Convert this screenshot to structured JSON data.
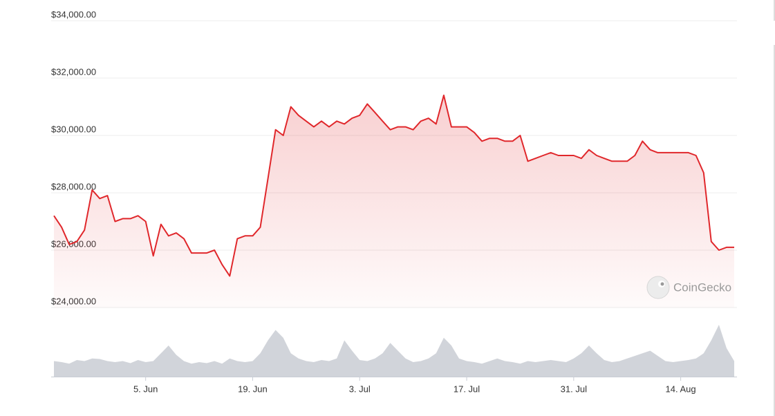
{
  "chart_data": {
    "type": "line",
    "color": "#e0272b",
    "grid": true,
    "ylim": [
      24000,
      34000
    ],
    "yticks": [
      {
        "value": 24000,
        "label": "$24,000.00"
      },
      {
        "value": 26000,
        "label": "$26,000.00"
      },
      {
        "value": 28000,
        "label": "$28,000.00"
      },
      {
        "value": 30000,
        "label": "$30,000.00"
      },
      {
        "value": 32000,
        "label": "$32,000.00"
      },
      {
        "value": 34000,
        "label": "$34,000.00"
      }
    ],
    "x": [
      "24. May",
      "25. May",
      "26. May",
      "27. May",
      "28. May",
      "29. May",
      "30. May",
      "31. May",
      "1. Jun",
      "2. Jun",
      "3. Jun",
      "4. Jun",
      "5. Jun",
      "6. Jun",
      "7. Jun",
      "8. Jun",
      "9. Jun",
      "10. Jun",
      "11. Jun",
      "12. Jun",
      "13. Jun",
      "14. Jun",
      "15. Jun",
      "16. Jun",
      "17. Jun",
      "18. Jun",
      "19. Jun",
      "20. Jun",
      "21. Jun",
      "22. Jun",
      "23. Jun",
      "24. Jun",
      "25. Jun",
      "26. Jun",
      "27. Jun",
      "28. Jun",
      "29. Jun",
      "30. Jun",
      "1. Jul",
      "2. Jul",
      "3. Jul",
      "4. Jul",
      "5. Jul",
      "6. Jul",
      "7. Jul",
      "8. Jul",
      "9. Jul",
      "10. Jul",
      "11. Jul",
      "12. Jul",
      "13. Jul",
      "14. Jul",
      "15. Jul",
      "16. Jul",
      "17. Jul",
      "18. Jul",
      "19. Jul",
      "20. Jul",
      "21. Jul",
      "22. Jul",
      "23. Jul",
      "24. Jul",
      "25. Jul",
      "26. Jul",
      "27. Jul",
      "28. Jul",
      "29. Jul",
      "30. Jul",
      "31. Jul",
      "1. Aug",
      "2. Aug",
      "3. Aug",
      "4. Aug",
      "5. Aug",
      "6. Aug",
      "7. Aug",
      "8. Aug",
      "9. Aug",
      "10. Aug",
      "11. Aug",
      "12. Aug",
      "13. Aug",
      "14. Aug",
      "15. Aug",
      "16. Aug",
      "17. Aug",
      "18. Aug",
      "19. Aug",
      "20. Aug",
      "21. Aug"
    ],
    "values": [
      27200,
      26800,
      26200,
      26300,
      26700,
      28100,
      27800,
      27900,
      27000,
      27100,
      27100,
      27200,
      27000,
      25800,
      26900,
      26500,
      26600,
      26400,
      25900,
      25900,
      25900,
      26000,
      25500,
      25100,
      26400,
      26500,
      26500,
      26800,
      28500,
      30200,
      30000,
      31000,
      30700,
      30500,
      30300,
      30500,
      30300,
      30500,
      30400,
      30600,
      30700,
      31100,
      30800,
      30500,
      30200,
      30300,
      30300,
      30200,
      30500,
      30600,
      30400,
      31400,
      30300,
      30300,
      30300,
      30100,
      29800,
      29900,
      29900,
      29800,
      29800,
      30000,
      29100,
      29200,
      29300,
      29400,
      29300,
      29300,
      29300,
      29200,
      29500,
      29300,
      29200,
      29100,
      29100,
      29100,
      29300,
      29800,
      29500,
      29400,
      29400,
      29400,
      29400,
      29400,
      29300,
      28700,
      26300,
      26000,
      26100,
      26100
    ],
    "xticks": [
      "5. Jun",
      "19. Jun",
      "3. Jul",
      "17. Jul",
      "31. Jul",
      "14. Aug"
    ],
    "volume": {
      "color": "#c9ccd3",
      "ylim": [
        0,
        100
      ],
      "values": [
        30,
        28,
        25,
        32,
        30,
        35,
        34,
        30,
        28,
        30,
        26,
        32,
        28,
        30,
        45,
        60,
        42,
        30,
        25,
        28,
        26,
        30,
        25,
        35,
        30,
        28,
        30,
        45,
        70,
        90,
        75,
        45,
        35,
        30,
        28,
        32,
        30,
        35,
        70,
        50,
        32,
        30,
        35,
        45,
        65,
        50,
        35,
        28,
        30,
        35,
        45,
        75,
        60,
        35,
        30,
        28,
        25,
        30,
        35,
        30,
        28,
        25,
        30,
        28,
        30,
        32,
        30,
        28,
        35,
        45,
        60,
        45,
        32,
        28,
        30,
        35,
        40,
        45,
        50,
        40,
        30,
        28,
        30,
        32,
        35,
        45,
        70,
        100,
        55,
        30
      ]
    },
    "watermark": "CoinGecko"
  }
}
